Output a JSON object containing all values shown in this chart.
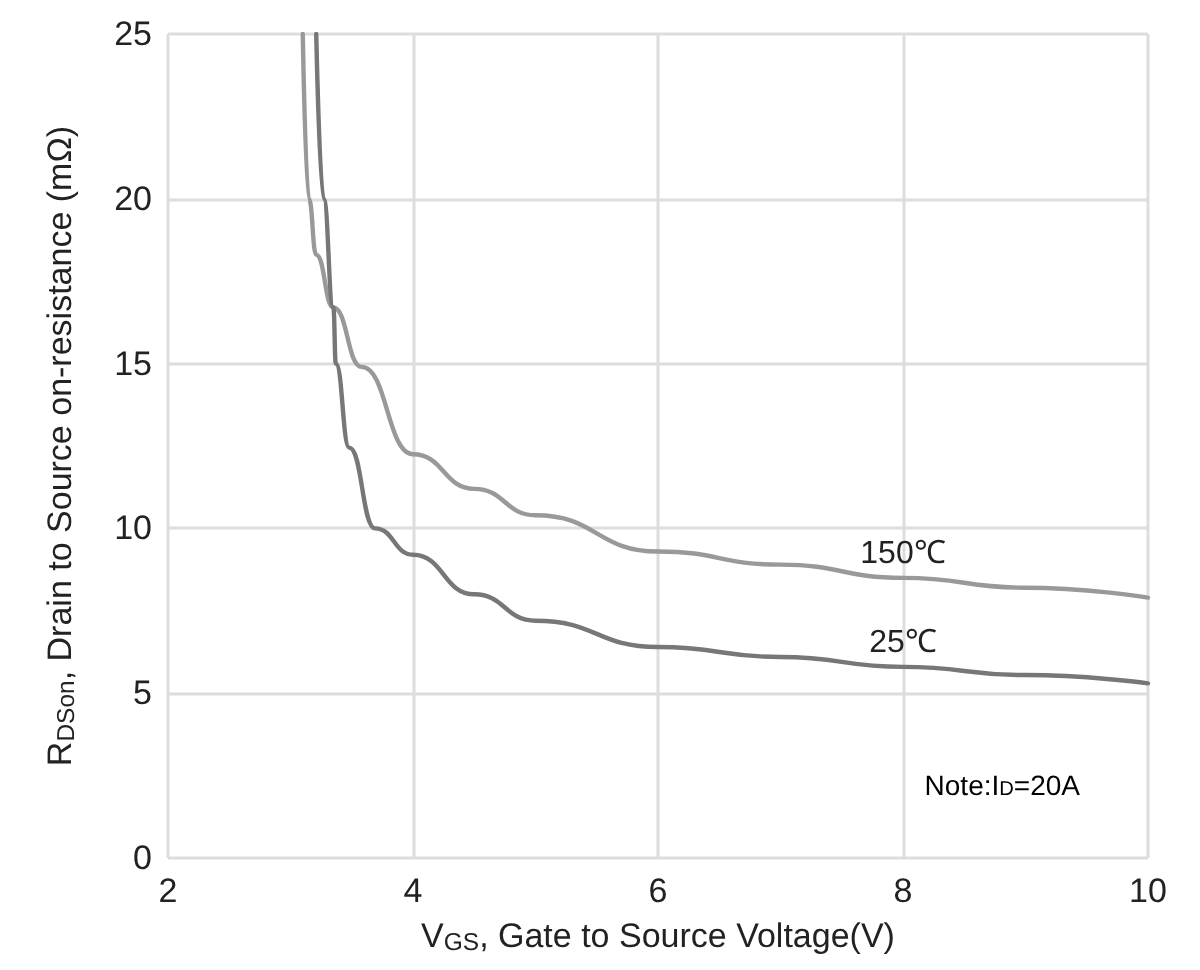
{
  "chart_data": {
    "type": "line",
    "xlabel": "V$_{GS}$, Gate to Source Voltage(V)",
    "ylabel": "R$_{DSon}$, Drain to Source on-resistance (mΩ)",
    "annotations": [
      "Note:I$_{D}$=20A"
    ],
    "series": [
      {
        "name": "150℃",
        "color": "#999999",
        "x": [
          3.1,
          3.15,
          3.21,
          3.35,
          3.58,
          4,
          4.5,
          5,
          6,
          7,
          8,
          9,
          10
        ],
        "values": [
          25,
          20,
          18.3,
          16.7,
          14.9,
          12.25,
          11.2,
          10.4,
          9.3,
          8.9,
          8.5,
          8.2,
          7.9
        ]
      },
      {
        "name": "25℃",
        "color": "#777777",
        "x": [
          3.21,
          3.27,
          3.35,
          3.37,
          3.48,
          3.69,
          4,
          4.5,
          5,
          6,
          7,
          8,
          9,
          10
        ],
        "values": [
          25,
          20,
          16.7,
          15,
          12.45,
          10,
          9.2,
          8,
          7.2,
          6.4,
          6.1,
          5.8,
          5.55,
          5.3
        ]
      }
    ],
    "xlim": [
      2,
      10
    ],
    "xticks": [
      2,
      4,
      6,
      8,
      10
    ],
    "ylim": [
      0,
      25
    ],
    "yticks": [
      0,
      5,
      10,
      15,
      20,
      25
    ],
    "grid": true,
    "legend": false,
    "marker": "none",
    "line_style": "solid"
  }
}
